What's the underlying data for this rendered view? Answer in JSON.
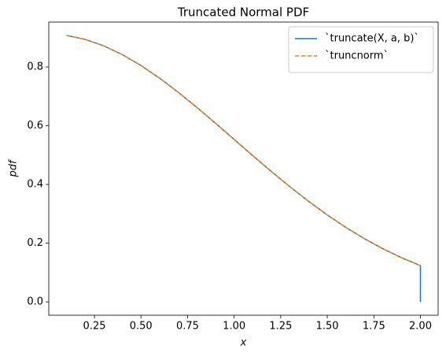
{
  "chart_data": {
    "type": "line",
    "title": "Truncated Normal PDF",
    "x_label": "x",
    "y_label": "pdf",
    "series": [
      {
        "name": "`truncate(X, a, b)`",
        "color": "#1f77b4",
        "dash": "solid",
        "x": [
          0.1,
          0.2,
          0.3,
          0.4,
          0.5,
          0.6,
          0.7,
          0.8,
          0.9,
          1.0,
          1.1,
          1.2,
          1.3,
          1.4,
          1.5,
          1.6,
          1.7,
          1.8,
          1.9,
          2.0,
          2.0
        ],
        "values": [
          0.9075,
          0.894,
          0.8719,
          0.8419,
          0.8049,
          0.7618,
          0.7138,
          0.6623,
          0.6083,
          0.5532,
          0.498,
          0.4439,
          0.3918,
          0.3423,
          0.2961,
          0.2536,
          0.215,
          0.1805,
          0.15,
          0.1234,
          0
        ]
      },
      {
        "name": "`truncnorm`",
        "color": "#ff7f0e",
        "dash": "dashed",
        "x": [
          0.1,
          0.2,
          0.3,
          0.4,
          0.5,
          0.6,
          0.7,
          0.8,
          0.9,
          1.0,
          1.1,
          1.2,
          1.3,
          1.4,
          1.5,
          1.6,
          1.7,
          1.8,
          1.9,
          2.0
        ],
        "values": [
          0.9075,
          0.894,
          0.8719,
          0.8419,
          0.8049,
          0.7618,
          0.7138,
          0.6623,
          0.6083,
          0.5532,
          0.498,
          0.4439,
          0.3918,
          0.3423,
          0.2961,
          0.2536,
          0.215,
          0.1805,
          0.15,
          0.1234
        ]
      }
    ],
    "xlim": [
      0.005,
      2.095
    ],
    "ylim": [
      -0.0454,
      0.9529
    ],
    "xticks": [
      0.25,
      {
        "value": 0.5,
        "label": "0.50"
      },
      0.75,
      {
        "value": 1.0,
        "label": "1.00"
      },
      1.25,
      {
        "value": 1.5,
        "label": "1.50"
      },
      1.75,
      {
        "value": 2.0,
        "label": "2.00"
      }
    ],
    "yticks": [
      {
        "value": 0,
        "label": "0.0"
      },
      0.2,
      0.4,
      0.6,
      0.8
    ],
    "grid": false,
    "legend": "upper right"
  }
}
